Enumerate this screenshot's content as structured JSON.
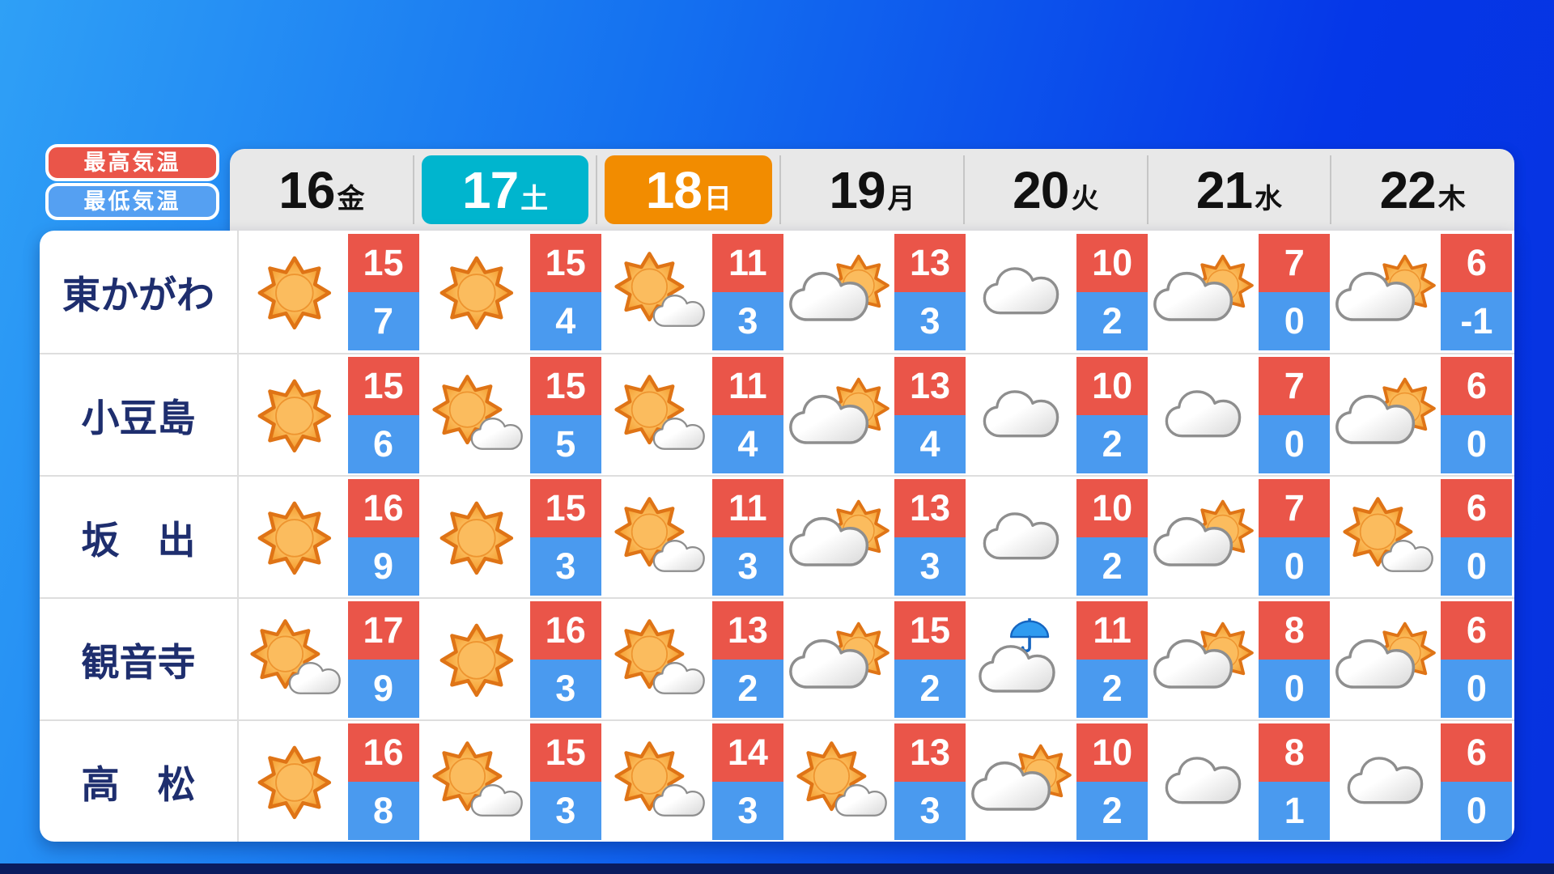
{
  "legend": {
    "high_label": "最高気温",
    "low_label": "最低気温"
  },
  "colors": {
    "background_top": "#2FA0F6",
    "background_bottom": "#0632DF",
    "saturday": "#00B5CE",
    "sunday": "#F28C00",
    "high_temp": "#EA5549",
    "low_temp": "#4A9AEF",
    "legend_high": "#EA5549",
    "legend_low": "#55A0F2",
    "location_text": "#1E2E6E",
    "header_band": "#E8E8E8"
  },
  "chart_data": {
    "type": "table",
    "columns": [
      {
        "date": "16",
        "dow": "金",
        "highlight": null
      },
      {
        "date": "17",
        "dow": "土",
        "highlight": "saturday"
      },
      {
        "date": "18",
        "dow": "日",
        "highlight": "sunday"
      },
      {
        "date": "19",
        "dow": "月",
        "highlight": null
      },
      {
        "date": "20",
        "dow": "火",
        "highlight": null
      },
      {
        "date": "21",
        "dow": "水",
        "highlight": null
      },
      {
        "date": "22",
        "dow": "木",
        "highlight": null
      }
    ],
    "rows": [
      {
        "location": "東かがわ",
        "forecasts": [
          {
            "icon": "sunny",
            "high": "15",
            "low": "7"
          },
          {
            "icon": "sunny",
            "high": "15",
            "low": "4"
          },
          {
            "icon": "sunny-then-cloudy",
            "high": "11",
            "low": "3"
          },
          {
            "icon": "cloudy-then-sunny",
            "high": "13",
            "low": "3"
          },
          {
            "icon": "cloudy",
            "high": "10",
            "low": "2"
          },
          {
            "icon": "cloudy-then-sunny",
            "high": "7",
            "low": "0"
          },
          {
            "icon": "cloudy-then-sunny",
            "high": "6",
            "low": "-1"
          }
        ]
      },
      {
        "location": "小豆島",
        "forecasts": [
          {
            "icon": "sunny",
            "high": "15",
            "low": "6"
          },
          {
            "icon": "sunny-then-cloudy",
            "high": "15",
            "low": "5"
          },
          {
            "icon": "sunny-then-cloudy",
            "high": "11",
            "low": "4"
          },
          {
            "icon": "cloudy-then-sunny",
            "high": "13",
            "low": "4"
          },
          {
            "icon": "cloudy",
            "high": "10",
            "low": "2"
          },
          {
            "icon": "cloudy",
            "high": "7",
            "low": "0"
          },
          {
            "icon": "cloudy-then-sunny",
            "high": "6",
            "low": "0"
          }
        ]
      },
      {
        "location": "坂　出",
        "forecasts": [
          {
            "icon": "sunny",
            "high": "16",
            "low": "9"
          },
          {
            "icon": "sunny",
            "high": "15",
            "low": "3"
          },
          {
            "icon": "sunny-then-cloudy",
            "high": "11",
            "low": "3"
          },
          {
            "icon": "cloudy-then-sunny",
            "high": "13",
            "low": "3"
          },
          {
            "icon": "cloudy",
            "high": "10",
            "low": "2"
          },
          {
            "icon": "cloudy-then-sunny",
            "high": "7",
            "low": "0"
          },
          {
            "icon": "sunny-then-cloudy",
            "high": "6",
            "low": "0"
          }
        ]
      },
      {
        "location": "観音寺",
        "forecasts": [
          {
            "icon": "sunny-then-cloudy",
            "high": "17",
            "low": "9"
          },
          {
            "icon": "sunny",
            "high": "16",
            "low": "3"
          },
          {
            "icon": "sunny-then-cloudy",
            "high": "13",
            "low": "2"
          },
          {
            "icon": "cloudy-then-sunny",
            "high": "15",
            "low": "2"
          },
          {
            "icon": "cloudy-then-rain",
            "high": "11",
            "low": "2"
          },
          {
            "icon": "cloudy-then-sunny",
            "high": "8",
            "low": "0"
          },
          {
            "icon": "cloudy-then-sunny",
            "high": "6",
            "low": "0"
          }
        ]
      },
      {
        "location": "高　松",
        "forecasts": [
          {
            "icon": "sunny",
            "high": "16",
            "low": "8"
          },
          {
            "icon": "sunny-then-cloudy",
            "high": "15",
            "low": "3"
          },
          {
            "icon": "sunny-then-cloudy",
            "high": "14",
            "low": "3"
          },
          {
            "icon": "sunny-then-cloudy",
            "high": "13",
            "low": "3"
          },
          {
            "icon": "cloudy-then-sunny",
            "high": "10",
            "low": "2"
          },
          {
            "icon": "cloudy",
            "high": "8",
            "low": "1"
          },
          {
            "icon": "cloudy",
            "high": "6",
            "low": "0"
          }
        ]
      }
    ]
  }
}
